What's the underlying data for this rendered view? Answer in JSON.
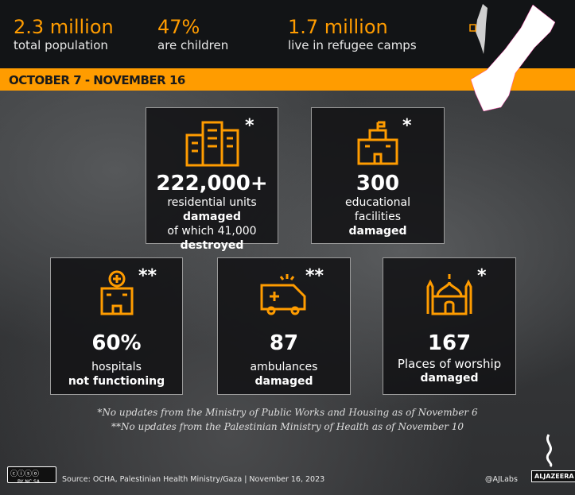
{
  "header": {
    "stats": [
      {
        "value": "2.3 million",
        "label": "total population"
      },
      {
        "value": "47%",
        "label": "are children"
      },
      {
        "value": "1.7 million",
        "label": "live in refugee camps"
      }
    ]
  },
  "period": "OCTOBER 7 - NOVEMBER 16",
  "cards": [
    {
      "icon": "buildings-icon",
      "mark": "*",
      "value": "222,000+",
      "line1": "residential units",
      "line2": "damaged",
      "line3": "of which 41,000",
      "line4": "destroyed"
    },
    {
      "icon": "school-icon",
      "mark": "*",
      "value": "300",
      "line1": "educational",
      "line2": "facilities",
      "line3": "damaged"
    },
    {
      "icon": "hospital-icon",
      "mark": "**",
      "value": "60%",
      "line1": "hospitals",
      "line2": "not functioning"
    },
    {
      "icon": "ambulance-icon",
      "mark": "**",
      "value": "87",
      "line1": "ambulances",
      "line2": "damaged"
    },
    {
      "icon": "mosque-icon",
      "mark": "*",
      "value": "167",
      "line1": "Places of worship",
      "line2": "damaged"
    }
  ],
  "notes": [
    "*No updates from the Ministry of Public Works and Housing as of November 6",
    "**No updates from the Palestinian Ministry of Health as of November 10"
  ],
  "footer": {
    "license": "BY NC SA",
    "source": "Source: OCHA, Palestinian Health Ministry/Gaza  |  November 16, 2023",
    "handle": "@AJLabs",
    "logo": "ALJAZEERA"
  },
  "colors": {
    "accent": "#ff9c00",
    "header_bg": "#121416"
  }
}
